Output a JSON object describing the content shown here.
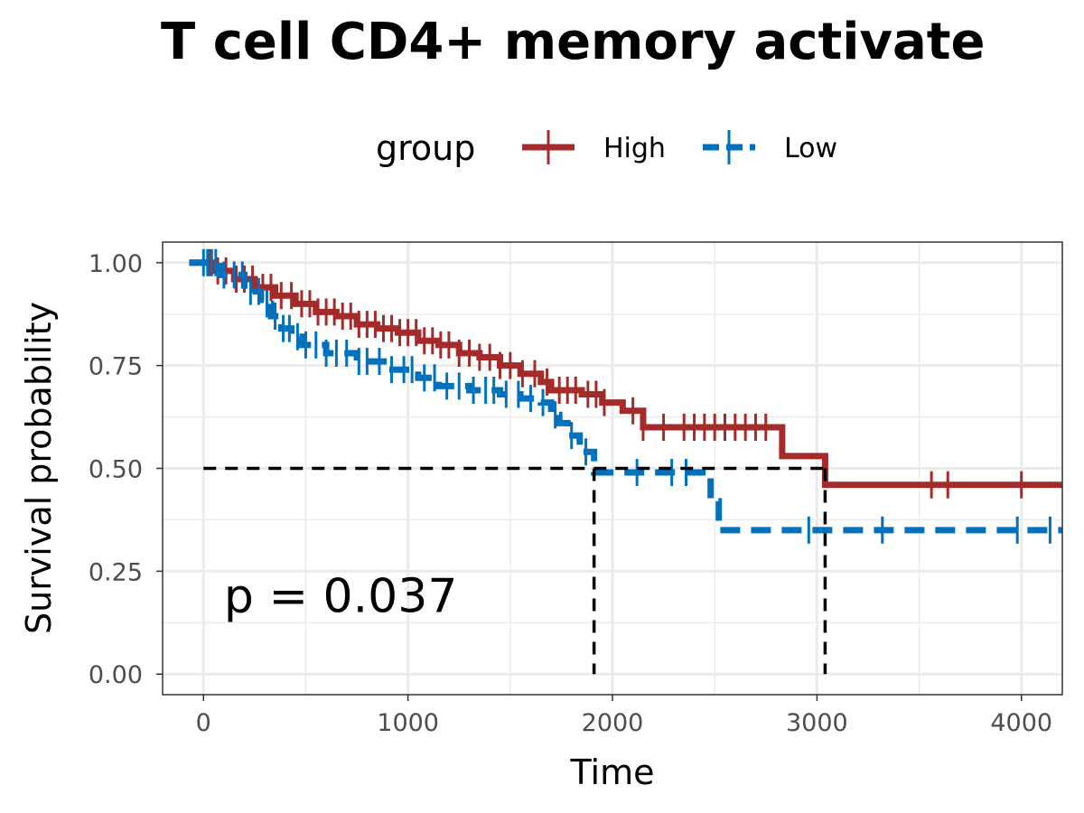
{
  "chart_data": {
    "type": "line",
    "subtype": "kaplan-meier",
    "title": "T cell CD4+ memory activate",
    "xlabel": "Time",
    "ylabel": "Survival probability",
    "xlim": [
      -200,
      4200
    ],
    "ylim": [
      -0.05,
      1.05
    ],
    "x_ticks": [
      0,
      1000,
      2000,
      3000,
      4000
    ],
    "x_tick_labels": [
      "0",
      "1000",
      "2000",
      "3000",
      "4000"
    ],
    "y_ticks": [
      0,
      0.25,
      0.5,
      0.75,
      1.0
    ],
    "y_tick_labels": [
      "0.00",
      "0.25",
      "0.50",
      "0.75",
      "1.00"
    ],
    "grid": true,
    "legend": {
      "title": "group",
      "position": "top"
    },
    "annotation": "p = 0.037",
    "annotation_pos": {
      "x": 100,
      "y": 0.19
    },
    "median_line_y": 0.5,
    "median_x": [
      1910,
      3040
    ],
    "series": [
      {
        "name": "High",
        "color": "#a52a2a",
        "dash": "solid",
        "steps": [
          [
            -70,
            1.0
          ],
          [
            60,
            0.98
          ],
          [
            150,
            0.96
          ],
          [
            250,
            0.94
          ],
          [
            350,
            0.92
          ],
          [
            450,
            0.9
          ],
          [
            550,
            0.88
          ],
          [
            650,
            0.87
          ],
          [
            750,
            0.85
          ],
          [
            850,
            0.84
          ],
          [
            950,
            0.83
          ],
          [
            1050,
            0.81
          ],
          [
            1150,
            0.8
          ],
          [
            1250,
            0.78
          ],
          [
            1350,
            0.77
          ],
          [
            1450,
            0.75
          ],
          [
            1550,
            0.73
          ],
          [
            1650,
            0.71
          ],
          [
            1700,
            0.69
          ],
          [
            1850,
            0.68
          ],
          [
            1950,
            0.66
          ],
          [
            2050,
            0.64
          ],
          [
            2150,
            0.6
          ],
          [
            2830,
            0.53
          ],
          [
            3040,
            0.46
          ],
          [
            4200,
            0.46
          ]
        ],
        "censor_times": [
          30,
          70,
          110,
          160,
          200,
          240,
          290,
          330,
          380,
          430,
          480,
          520,
          560,
          600,
          640,
          680,
          720,
          760,
          800,
          840,
          880,
          920,
          960,
          1000,
          1040,
          1080,
          1120,
          1160,
          1200,
          1250,
          1300,
          1350,
          1400,
          1450,
          1500,
          1560,
          1620,
          1680,
          1740,
          1780,
          1820,
          1880,
          1920,
          1960,
          2100,
          2150,
          2250,
          2350,
          2400,
          2450,
          2500,
          2550,
          2600,
          2650,
          2700,
          2750,
          3560,
          3640,
          4000
        ]
      },
      {
        "name": "Low",
        "color": "#0072bd",
        "dash": "dashed",
        "steps": [
          [
            -70,
            1.0
          ],
          [
            80,
            0.97
          ],
          [
            200,
            0.93
          ],
          [
            280,
            0.9
          ],
          [
            330,
            0.87
          ],
          [
            380,
            0.84
          ],
          [
            430,
            0.82
          ],
          [
            480,
            0.8
          ],
          [
            600,
            0.78
          ],
          [
            750,
            0.76
          ],
          [
            900,
            0.74
          ],
          [
            1050,
            0.72
          ],
          [
            1150,
            0.7
          ],
          [
            1300,
            0.69
          ],
          [
            1450,
            0.68
          ],
          [
            1550,
            0.67
          ],
          [
            1650,
            0.66
          ],
          [
            1700,
            0.63
          ],
          [
            1740,
            0.61
          ],
          [
            1780,
            0.58
          ],
          [
            1840,
            0.54
          ],
          [
            1910,
            0.49
          ],
          [
            2480,
            0.42
          ],
          [
            2520,
            0.35
          ],
          [
            4200,
            0.35
          ]
        ],
        "censor_times": [
          0,
          20,
          40,
          60,
          100,
          150,
          190,
          230,
          270,
          310,
          350,
          390,
          420,
          460,
          500,
          550,
          600,
          650,
          700,
          760,
          800,
          860,
          920,
          980,
          1020,
          1080,
          1130,
          1190,
          1250,
          1320,
          1380,
          1420,
          1480,
          1540,
          1600,
          1660,
          1720,
          1800,
          1870,
          2120,
          2290,
          2360,
          2960,
          3320,
          3980,
          4140
        ]
      }
    ]
  }
}
